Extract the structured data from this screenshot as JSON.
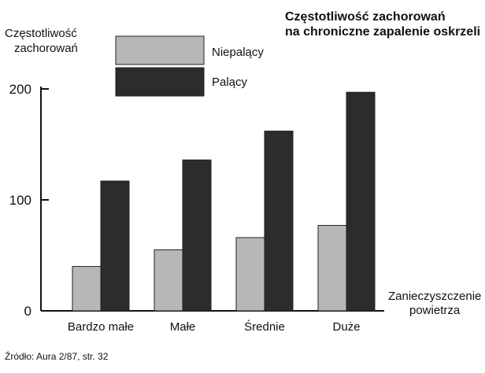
{
  "chart_data": {
    "type": "bar",
    "title_line1": "Częstotliwość zachorowań",
    "title_line2": "na chroniczne zapalenie oskrzeli",
    "ylabel_line1": "Częstotliwość",
    "ylabel_line2": "zachorowań",
    "xlabel_line1": "Zanieczyszczenie",
    "xlabel_line2": "powietrza",
    "categories": [
      "Bardzo małe",
      "Małe",
      "Średnie",
      "Duże"
    ],
    "series": [
      {
        "name": "Niepalący",
        "values": [
          40,
          55,
          66,
          77
        ],
        "color": "#b7b7b7"
      },
      {
        "name": "Palący",
        "values": [
          117,
          136,
          162,
          197
        ],
        "color": "#2c2c2c"
      }
    ],
    "yticks": [
      "0",
      "100",
      "200"
    ],
    "ylim": [
      0,
      200
    ],
    "grid": false,
    "legend_position": "top-center",
    "source_note": "Źródło: Aura 2/87, str. 32"
  }
}
